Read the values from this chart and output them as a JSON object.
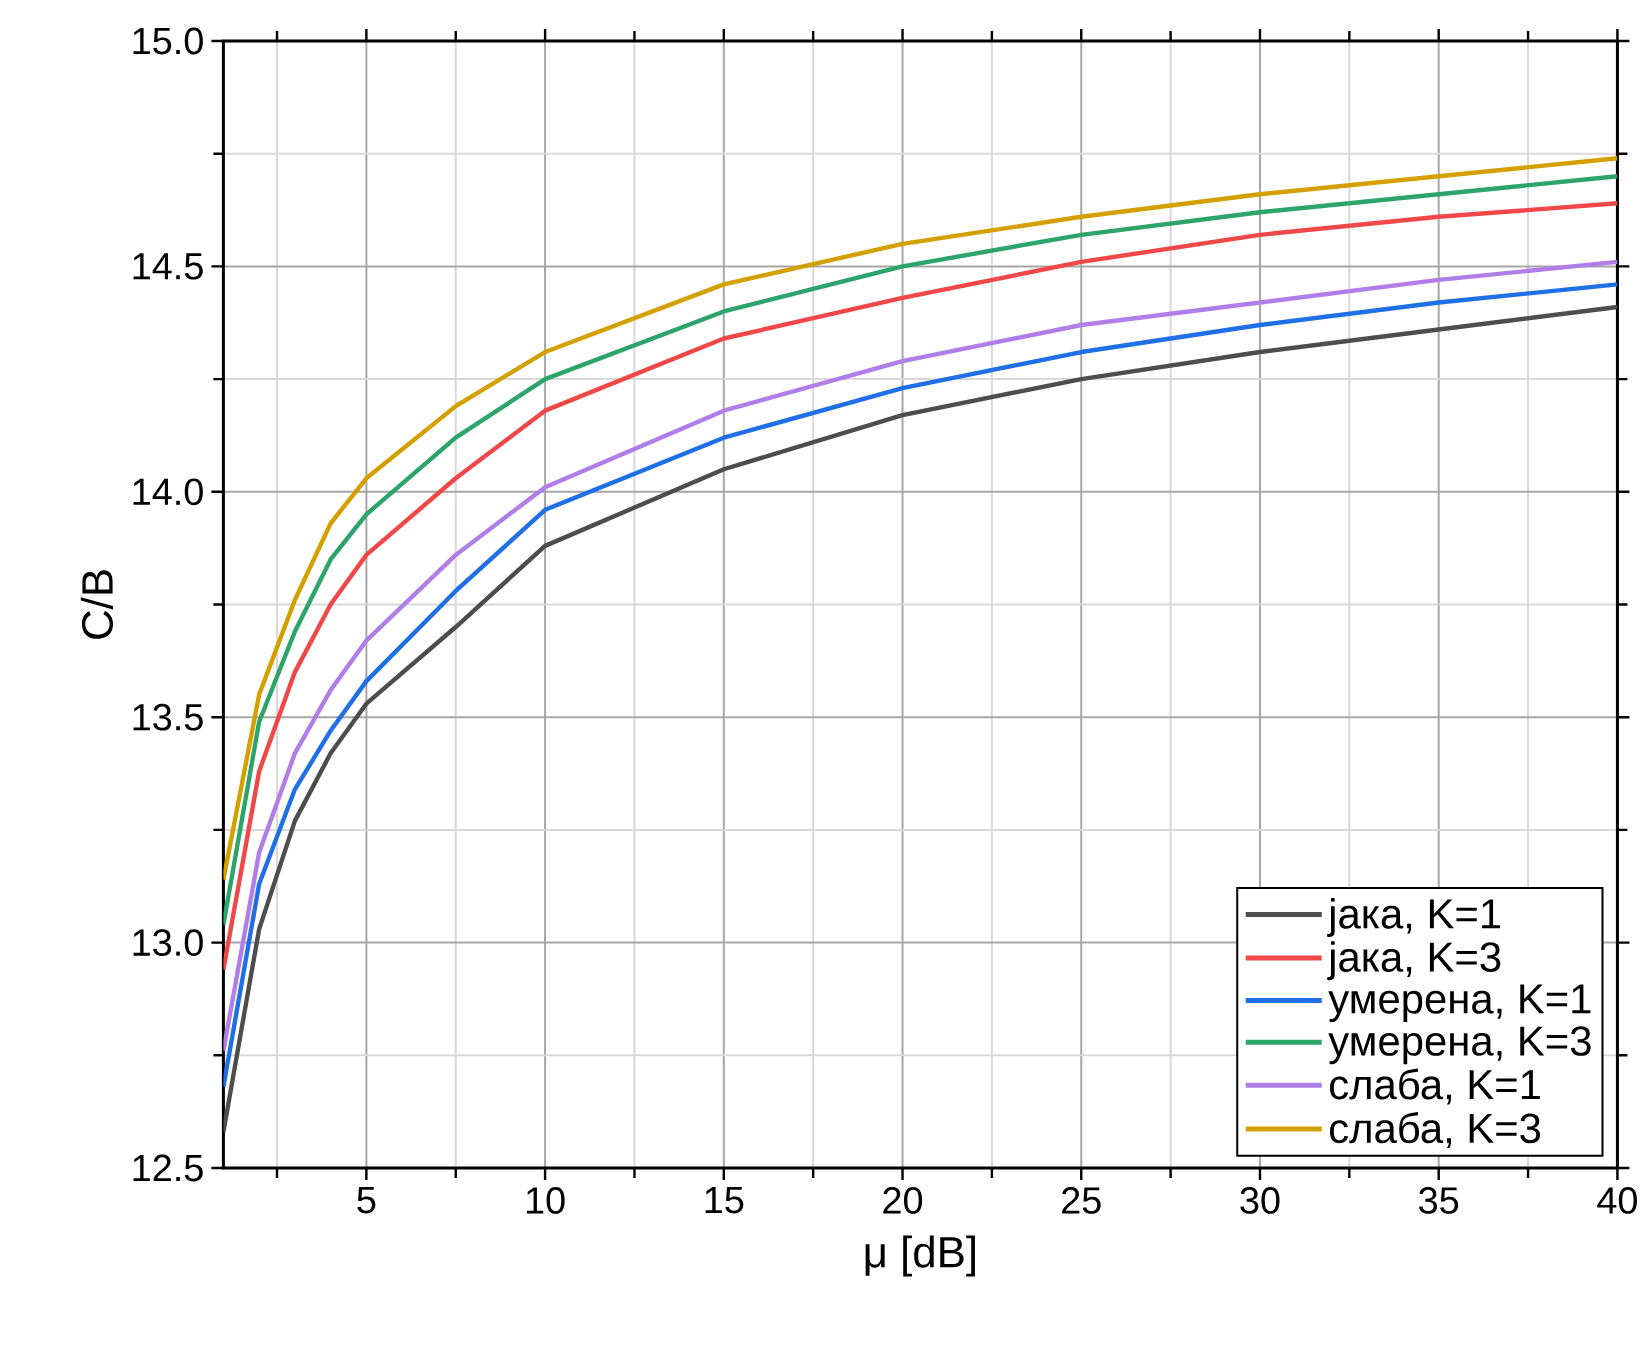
{
  "chart_data": {
    "type": "line",
    "xlabel": "μ [dB]",
    "ylabel": "С/В",
    "x": [
      1,
      2,
      3,
      4,
      5,
      7.5,
      10,
      15,
      20,
      25,
      30,
      35,
      40
    ],
    "series": [
      {
        "name": "јака, K=1",
        "color": "#4d4d4d",
        "values": [
          12.58,
          13.03,
          13.27,
          13.42,
          13.53,
          13.7,
          13.88,
          14.05,
          14.17,
          14.25,
          14.31,
          14.36,
          14.41
        ]
      },
      {
        "name": "јака, K=3",
        "color": "#f04848",
        "values": [
          12.94,
          13.38,
          13.6,
          13.75,
          13.86,
          14.03,
          14.18,
          14.34,
          14.43,
          14.51,
          14.57,
          14.61,
          14.64
        ]
      },
      {
        "name": "умерена, K=1",
        "color": "#1f6fe6",
        "values": [
          12.68,
          13.13,
          13.34,
          13.47,
          13.58,
          13.78,
          13.96,
          14.12,
          14.23,
          14.31,
          14.37,
          14.42,
          14.46
        ]
      },
      {
        "name": "умерена, K=3",
        "color": "#2ca46a",
        "values": [
          13.04,
          13.49,
          13.69,
          13.85,
          13.95,
          14.12,
          14.25,
          14.4,
          14.5,
          14.57,
          14.62,
          14.66,
          14.7
        ]
      },
      {
        "name": "слаба, K=1",
        "color": "#b07ee8",
        "values": [
          12.76,
          13.2,
          13.42,
          13.56,
          13.67,
          13.86,
          14.01,
          14.18,
          14.29,
          14.37,
          14.42,
          14.47,
          14.51
        ]
      },
      {
        "name": "слаба, K=3",
        "color": "#d4a000",
        "values": [
          13.14,
          13.55,
          13.76,
          13.93,
          14.03,
          14.19,
          14.31,
          14.46,
          14.55,
          14.61,
          14.66,
          14.7,
          14.74
        ]
      }
    ],
    "xlim": [
      1,
      40
    ],
    "ylim": [
      12.5,
      15.0
    ],
    "xticks": [
      {
        "value": 2.5,
        "label": null
      },
      5,
      {
        "value": 7.5,
        "label": null
      },
      10,
      {
        "value": 12.5,
        "label": null
      },
      15,
      {
        "value": 17.5,
        "label": null
      },
      20,
      {
        "value": 22.5,
        "label": null
      },
      25,
      {
        "value": 27.5,
        "label": null
      },
      30,
      {
        "value": 32.5,
        "label": null
      },
      35,
      {
        "value": 37.5,
        "label": null
      },
      40
    ],
    "yticks": [
      {
        "value": 12.5,
        "label": "12.5"
      },
      {
        "value": 12.75,
        "label": null
      },
      {
        "value": 13,
        "label": "13.0"
      },
      {
        "value": 13.25,
        "label": null
      },
      {
        "value": 13.5,
        "label": "13.5"
      },
      {
        "value": 13.75,
        "label": null
      },
      {
        "value": 14,
        "label": "14.0"
      },
      {
        "value": 14.25,
        "label": null
      },
      {
        "value": 14.5,
        "label": "14.5"
      },
      {
        "value": 14.75,
        "label": null
      },
      {
        "value": 15,
        "label": "15.0"
      }
    ],
    "grid": true,
    "legend": "bottom right",
    "line_style": "solid",
    "marker": "none"
  }
}
